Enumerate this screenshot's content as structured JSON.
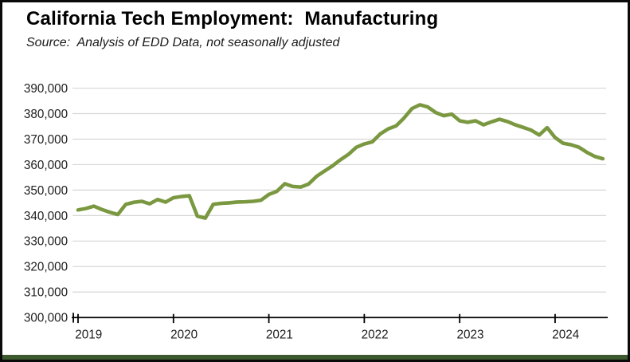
{
  "header": {
    "title": "California Tech Employment:  Manufacturing",
    "source": "Source:  Analysis of EDD Data, not seasonally adjusted"
  },
  "colors": {
    "line": "#7A9840",
    "gridline": "#D6D6D6",
    "axis": "#000000",
    "tick_text": "#1F1F1F",
    "bottom_bar": "#3C5A2D"
  },
  "chart_data": {
    "type": "line",
    "title": "California Tech Employment:  Manufacturing",
    "subtitle": "Source:  Analysis of EDD Data, not seasonally adjusted",
    "xlabel": "",
    "ylabel": "",
    "ylim": [
      300000,
      390000
    ],
    "grid": true,
    "legend_position": "none",
    "points_per_year": 12,
    "x_tick_labels": [
      "2019",
      "2020",
      "2021",
      "2022",
      "2023",
      "2024"
    ],
    "y_tick_labels": [
      "390,000",
      "380,000",
      "370,000",
      "360,000",
      "350,000",
      "340,000",
      "330,000",
      "320,000",
      "310,000",
      "300,000"
    ],
    "series": [
      {
        "name": "Manufacturing",
        "color": "#7A9840",
        "start": "2019-01",
        "frequency": "monthly",
        "values": [
          342200,
          342800,
          343700,
          342400,
          341300,
          340400,
          344400,
          345200,
          345600,
          344600,
          346300,
          345300,
          347000,
          347500,
          347800,
          339800,
          339000,
          344400,
          344800,
          345000,
          345300,
          345400,
          345600,
          346000,
          348300,
          349500,
          352500,
          351400,
          351200,
          352400,
          355400,
          357500,
          359500,
          361900,
          364000,
          366800,
          368100,
          368900,
          372000,
          374000,
          375200,
          378300,
          382000,
          383500,
          382600,
          380400,
          379200,
          379800,
          377200,
          376600,
          377200,
          375600,
          376800,
          377800,
          376900,
          375600,
          374600,
          373500,
          371600,
          374500,
          370600,
          368400,
          367800,
          366800,
          364800,
          363200,
          362300
        ]
      }
    ]
  }
}
